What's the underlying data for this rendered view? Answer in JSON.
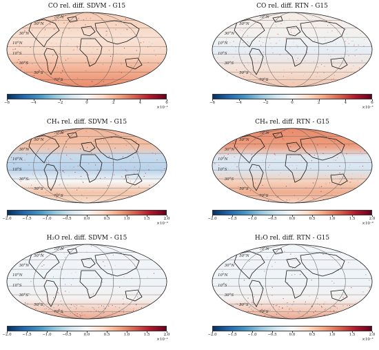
{
  "panels": [
    {
      "title": "CO rel. diff. SDVM - G15",
      "ticks": [
        "−6",
        "−4",
        "−2",
        "0",
        "2",
        "4",
        "6"
      ],
      "multiplier": "×10⁻¹",
      "tint": "warm"
    },
    {
      "title": "CO rel. diff. RTN - G15",
      "ticks": [
        "−6",
        "−4",
        "−2",
        "0",
        "2",
        "4",
        "6"
      ],
      "multiplier": "×10⁻¹",
      "tint": "light"
    },
    {
      "title": "CH₄ rel. diff. SDVM - G15",
      "ticks": [
        "−2.0",
        "−1.5",
        "−1.0",
        "−0.5",
        "0.0",
        "0.5",
        "1.0",
        "1.5",
        "2.0"
      ],
      "multiplier": "×10⁻²",
      "tint": "bands"
    },
    {
      "title": "CH₄ rel. diff. RTN - G15",
      "ticks": [
        "−2.0",
        "−1.5",
        "−1.0",
        "−0.5",
        "0.0",
        "0.5",
        "1.0",
        "1.5",
        "2.0"
      ],
      "multiplier": "×10⁻²",
      "tint": "bandswarm"
    },
    {
      "title": "H₂O rel. diff. SDVM - G15",
      "ticks": [
        "−2.0",
        "−1.5",
        "−1.0",
        "−0.5",
        "0.0",
        "0.5",
        "1.0",
        "1.5",
        "2.0"
      ],
      "multiplier": "×10⁻¹",
      "tint": "south"
    },
    {
      "title": "H₂O rel. diff. RTN - G15",
      "ticks": [
        "−2.0",
        "−1.5",
        "−1.0",
        "−0.5",
        "0.0",
        "0.5",
        "1.0",
        "1.5",
        "2.0"
      ],
      "multiplier": "×10⁻¹",
      "tint": "south"
    }
  ],
  "lat_labels": [
    "70°N",
    "50°N",
    "30°N",
    "10°N",
    "10°S",
    "30°S",
    "50°S",
    "70°S"
  ],
  "colors": {
    "blue": "#2166ac",
    "white": "#f7f7f7",
    "red": "#b2182b",
    "outline": "#222222"
  }
}
